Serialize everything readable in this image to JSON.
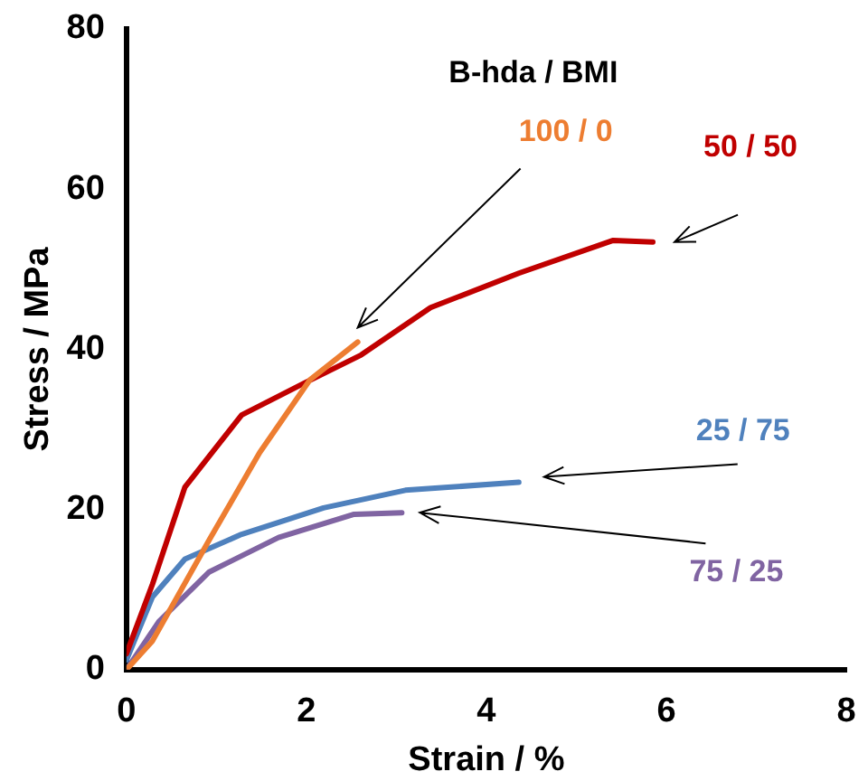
{
  "chart_data": {
    "type": "line",
    "xlabel": "Strain / %",
    "ylabel": "Stress / MPa",
    "legend_title": "B-hda / BMI",
    "xlim": [
      0,
      8
    ],
    "xticks": [
      0,
      2,
      4,
      6,
      8
    ],
    "ylim": [
      0,
      80
    ],
    "yticks": [
      0,
      20,
      40,
      60,
      80
    ],
    "grid": false,
    "legend": false,
    "marker": "none",
    "line_style": "solid",
    "series": [
      {
        "name": "100 / 0",
        "color": "#ed7d31",
        "x": [
          0,
          0.29,
          0.92,
          1.48,
          2.04,
          2.57
        ],
        "values": [
          0,
          3.6,
          16.2,
          27.1,
          36.2,
          40.9
        ]
      },
      {
        "name": "50 / 50",
        "color": "#c00000",
        "x": [
          0,
          0.29,
          0.65,
          1.28,
          1.98,
          2.61,
          3.38,
          4.36,
          5.41,
          5.85
        ],
        "values": [
          2,
          10.7,
          22.8,
          31.8,
          35.8,
          39.3,
          45.2,
          49.5,
          53.6,
          53.4
        ]
      },
      {
        "name": "25 / 75",
        "color": "#4f81bd",
        "x": [
          0,
          0.29,
          0.65,
          1.28,
          2.19,
          3.1,
          4.36
        ],
        "values": [
          1.2,
          9.1,
          13.8,
          16.9,
          20.2,
          22.4,
          23.4
        ]
      },
      {
        "name": "75 / 25",
        "color": "#8064a2",
        "x": [
          0,
          0.36,
          0.92,
          1.69,
          2.53,
          3.06
        ],
        "values": [
          0,
          6,
          12.2,
          16.5,
          19.4,
          19.6
        ]
      }
    ]
  }
}
